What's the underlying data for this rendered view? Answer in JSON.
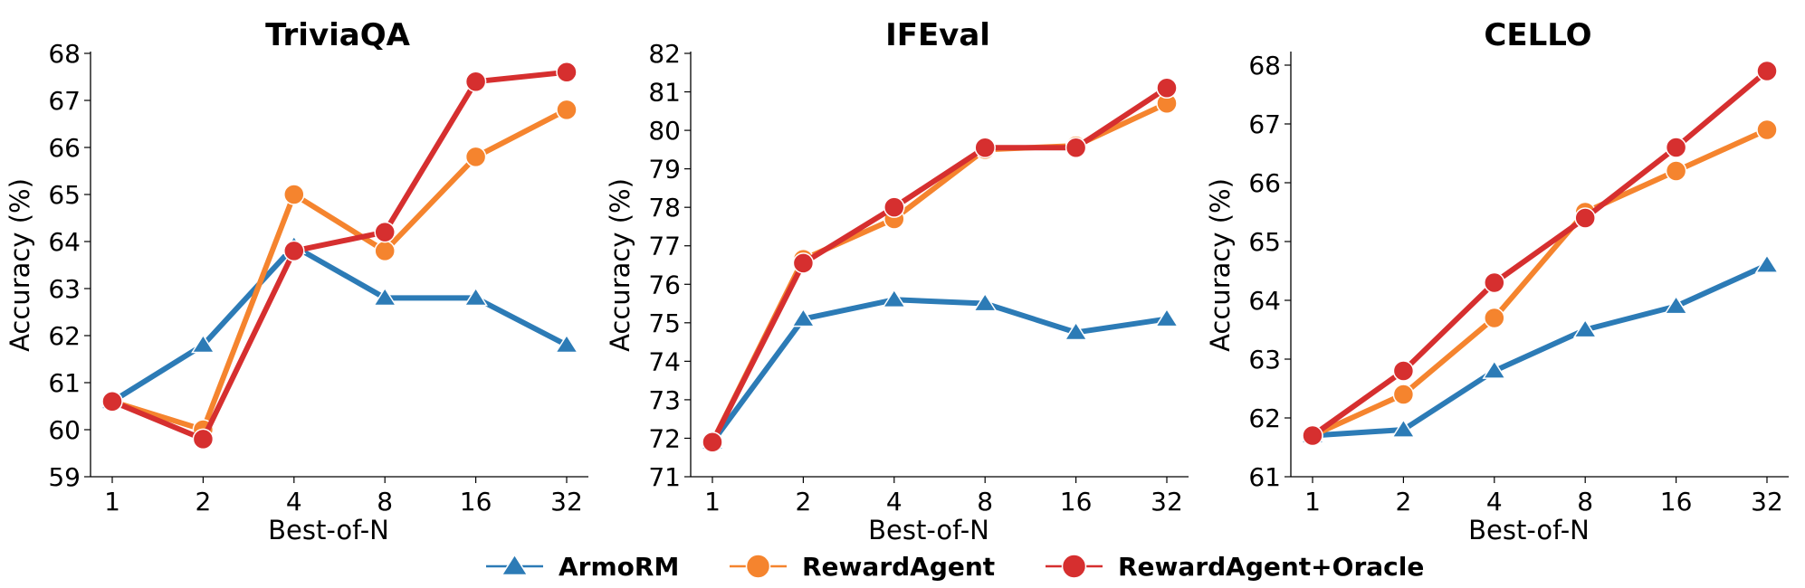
{
  "legend": [
    {
      "name": "ArmoRM",
      "color": "#2c7bb6",
      "marker": "triangle"
    },
    {
      "name": "RewardAgent",
      "color": "#f5842e",
      "marker": "circle"
    },
    {
      "name": "RewardAgent+Oracle",
      "color": "#d62f2f",
      "marker": "circle"
    }
  ],
  "chart_data": [
    {
      "type": "line",
      "title": "TriviaQA",
      "xlabel": "Best-of-N",
      "ylabel": "Accuracy (%)",
      "categories": [
        "1",
        "2",
        "4",
        "8",
        "16",
        "32"
      ],
      "ylim": [
        59,
        68
      ],
      "yticks": [
        59,
        60,
        61,
        62,
        63,
        64,
        65,
        66,
        67,
        68
      ],
      "series": [
        {
          "name": "ArmoRM",
          "values": [
            60.6,
            61.8,
            63.9,
            62.8,
            62.8,
            61.8
          ]
        },
        {
          "name": "RewardAgent",
          "values": [
            60.6,
            60.0,
            65.0,
            63.8,
            65.8,
            66.8
          ]
        },
        {
          "name": "RewardAgent+Oracle",
          "values": [
            60.6,
            59.8,
            63.8,
            64.2,
            67.4,
            67.6
          ]
        }
      ]
    },
    {
      "type": "line",
      "title": "IFEval",
      "xlabel": "Best-of-N",
      "ylabel": "Accuracy (%)",
      "categories": [
        "1",
        "2",
        "4",
        "8",
        "16",
        "32"
      ],
      "ylim": [
        71,
        82
      ],
      "yticks": [
        71,
        72,
        73,
        74,
        75,
        76,
        77,
        78,
        79,
        80,
        81,
        82
      ],
      "series": [
        {
          "name": "ArmoRM",
          "values": [
            71.9,
            75.1,
            75.6,
            75.5,
            74.75,
            75.1
          ]
        },
        {
          "name": "RewardAgent",
          "values": [
            71.9,
            76.65,
            77.7,
            79.5,
            79.6,
            80.7
          ]
        },
        {
          "name": "RewardAgent+Oracle",
          "values": [
            71.9,
            76.55,
            78.0,
            79.55,
            79.55,
            81.1
          ]
        }
      ]
    },
    {
      "type": "line",
      "title": "CELLO",
      "xlabel": "Best-of-N",
      "ylabel": "Accuracy (%)",
      "categories": [
        "1",
        "2",
        "4",
        "8",
        "16",
        "32"
      ],
      "ylim": [
        61,
        68.2
      ],
      "yticks": [
        61,
        62,
        63,
        64,
        65,
        66,
        67,
        68
      ],
      "series": [
        {
          "name": "ArmoRM",
          "values": [
            61.7,
            61.8,
            62.8,
            63.5,
            63.9,
            64.6
          ]
        },
        {
          "name": "RewardAgent",
          "values": [
            61.7,
            62.4,
            63.7,
            65.5,
            66.2,
            66.9
          ]
        },
        {
          "name": "RewardAgent+Oracle",
          "values": [
            61.7,
            62.8,
            64.3,
            65.4,
            66.6,
            67.9
          ]
        }
      ]
    }
  ]
}
